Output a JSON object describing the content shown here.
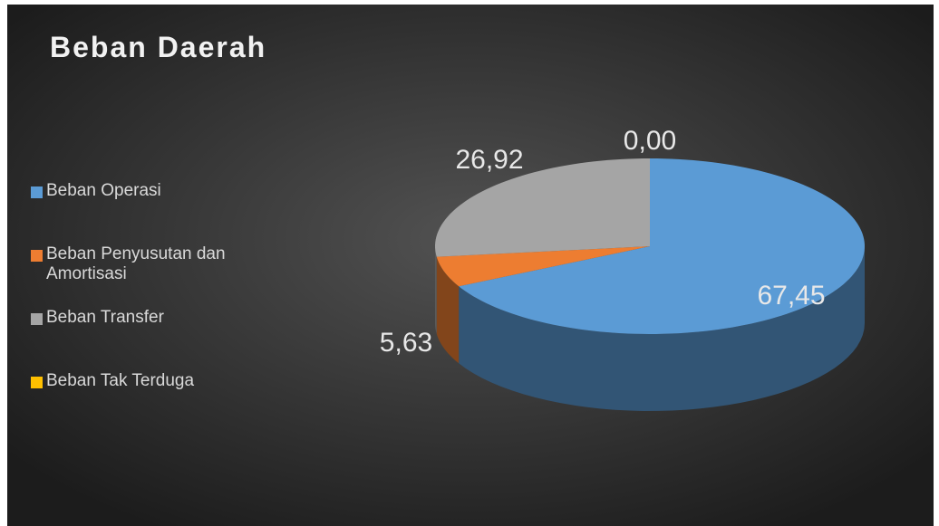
{
  "chart_data": {
    "type": "pie",
    "title": "Beban Daerah",
    "categories": [
      "Beban Operasi",
      "Beban Penyusutan dan Amortisasi",
      "Beban Transfer",
      "Beban Tak Terduga"
    ],
    "values": [
      67.45,
      5.63,
      26.92,
      0.0
    ],
    "value_labels": [
      "67,45",
      "5,63",
      "26,92",
      "0,00"
    ],
    "colors": [
      "#5b9bd5",
      "#ed7d31",
      "#a5a5a5",
      "#ffc000"
    ],
    "legend": "left"
  }
}
